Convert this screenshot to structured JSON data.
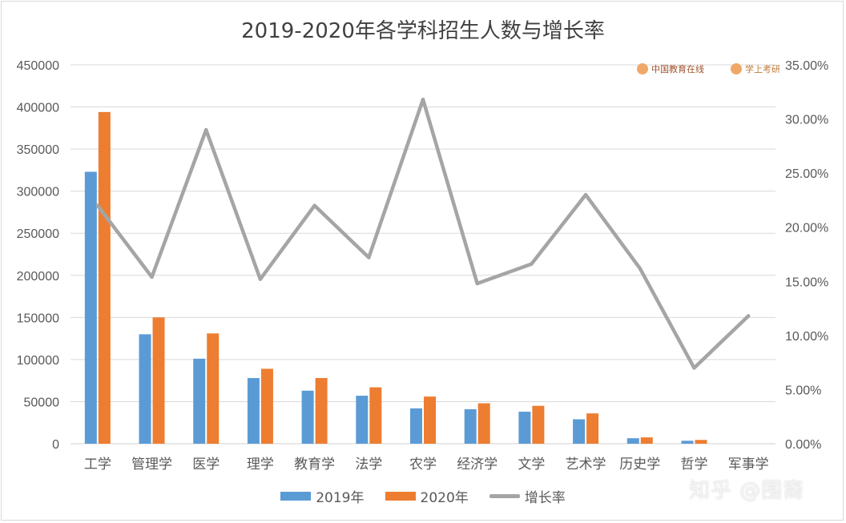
{
  "chart_data": {
    "type": "bar",
    "title": "2019-2020年各学科招生人数与增长率",
    "categories": [
      "工学",
      "管理学",
      "医学",
      "理学",
      "教育学",
      "法学",
      "农学",
      "经济学",
      "文学",
      "艺术学",
      "历史学",
      "哲学",
      "军事学"
    ],
    "series": [
      {
        "name": "2019年",
        "type": "bar",
        "axis": "left",
        "color": "#5b9bd5",
        "values": [
          323000,
          130000,
          101000,
          78000,
          63000,
          57000,
          42000,
          41000,
          38000,
          29000,
          6500,
          3500,
          0
        ]
      },
      {
        "name": "2020年",
        "type": "bar",
        "axis": "left",
        "color": "#ed7d31",
        "values": [
          394000,
          150000,
          131000,
          89000,
          78000,
          67000,
          56000,
          48000,
          45000,
          36000,
          7500,
          4500,
          0
        ]
      },
      {
        "name": "增长率",
        "type": "line",
        "axis": "right",
        "color": "#a5a5a5",
        "values": [
          0.22,
          0.154,
          0.29,
          0.152,
          0.22,
          0.172,
          0.318,
          0.148,
          0.166,
          0.23,
          0.162,
          0.07,
          0.118
        ]
      }
    ],
    "y_left": {
      "min": 0,
      "max": 450000,
      "step": 50000,
      "ticks": [
        "0",
        "50000",
        "100000",
        "150000",
        "200000",
        "250000",
        "300000",
        "350000",
        "400000",
        "450000"
      ]
    },
    "y_right": {
      "min": 0,
      "max": 0.35,
      "step": 0.05,
      "ticks": [
        "0.00%",
        "5.00%",
        "10.00%",
        "15.00%",
        "20.00%",
        "25.00%",
        "30.00%",
        "35.00%"
      ]
    },
    "grid": true,
    "legend": "bottom-center"
  },
  "legend": {
    "s1": "2019年",
    "s2": "2020年",
    "s3": "增长率"
  },
  "watermarks": {
    "eol": "中国教育在线",
    "xue": "学上考研",
    "zhihu": "知乎 @围裔"
  }
}
